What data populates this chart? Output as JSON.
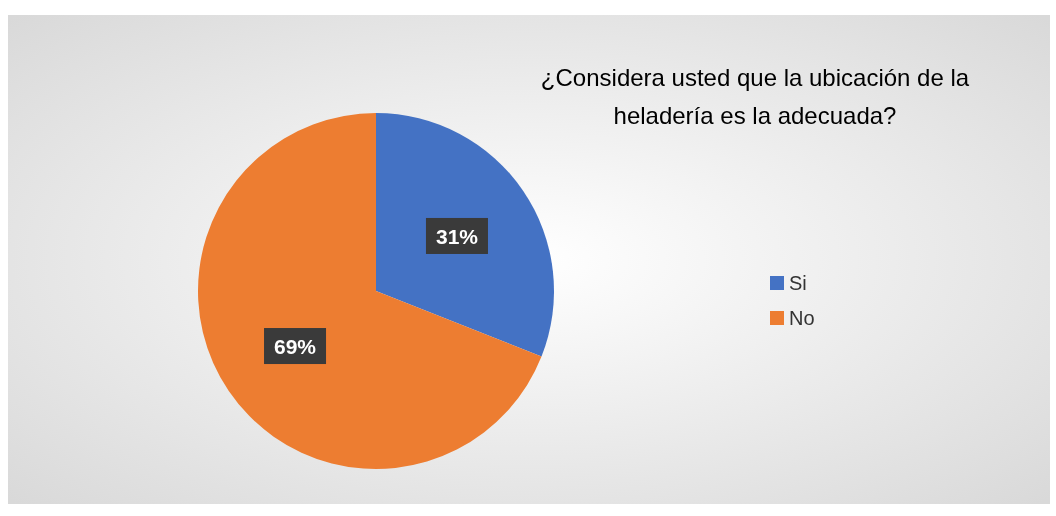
{
  "chart_data": {
    "type": "pie",
    "title": "¿Considera usted que la ubicación de la heladería es la adecuada?",
    "categories": [
      "Si",
      "No"
    ],
    "values": [
      31,
      69
    ],
    "colors": [
      "#4472c4",
      "#ed7d31"
    ],
    "value_labels": [
      "31%",
      "69%"
    ],
    "legend": "right"
  }
}
